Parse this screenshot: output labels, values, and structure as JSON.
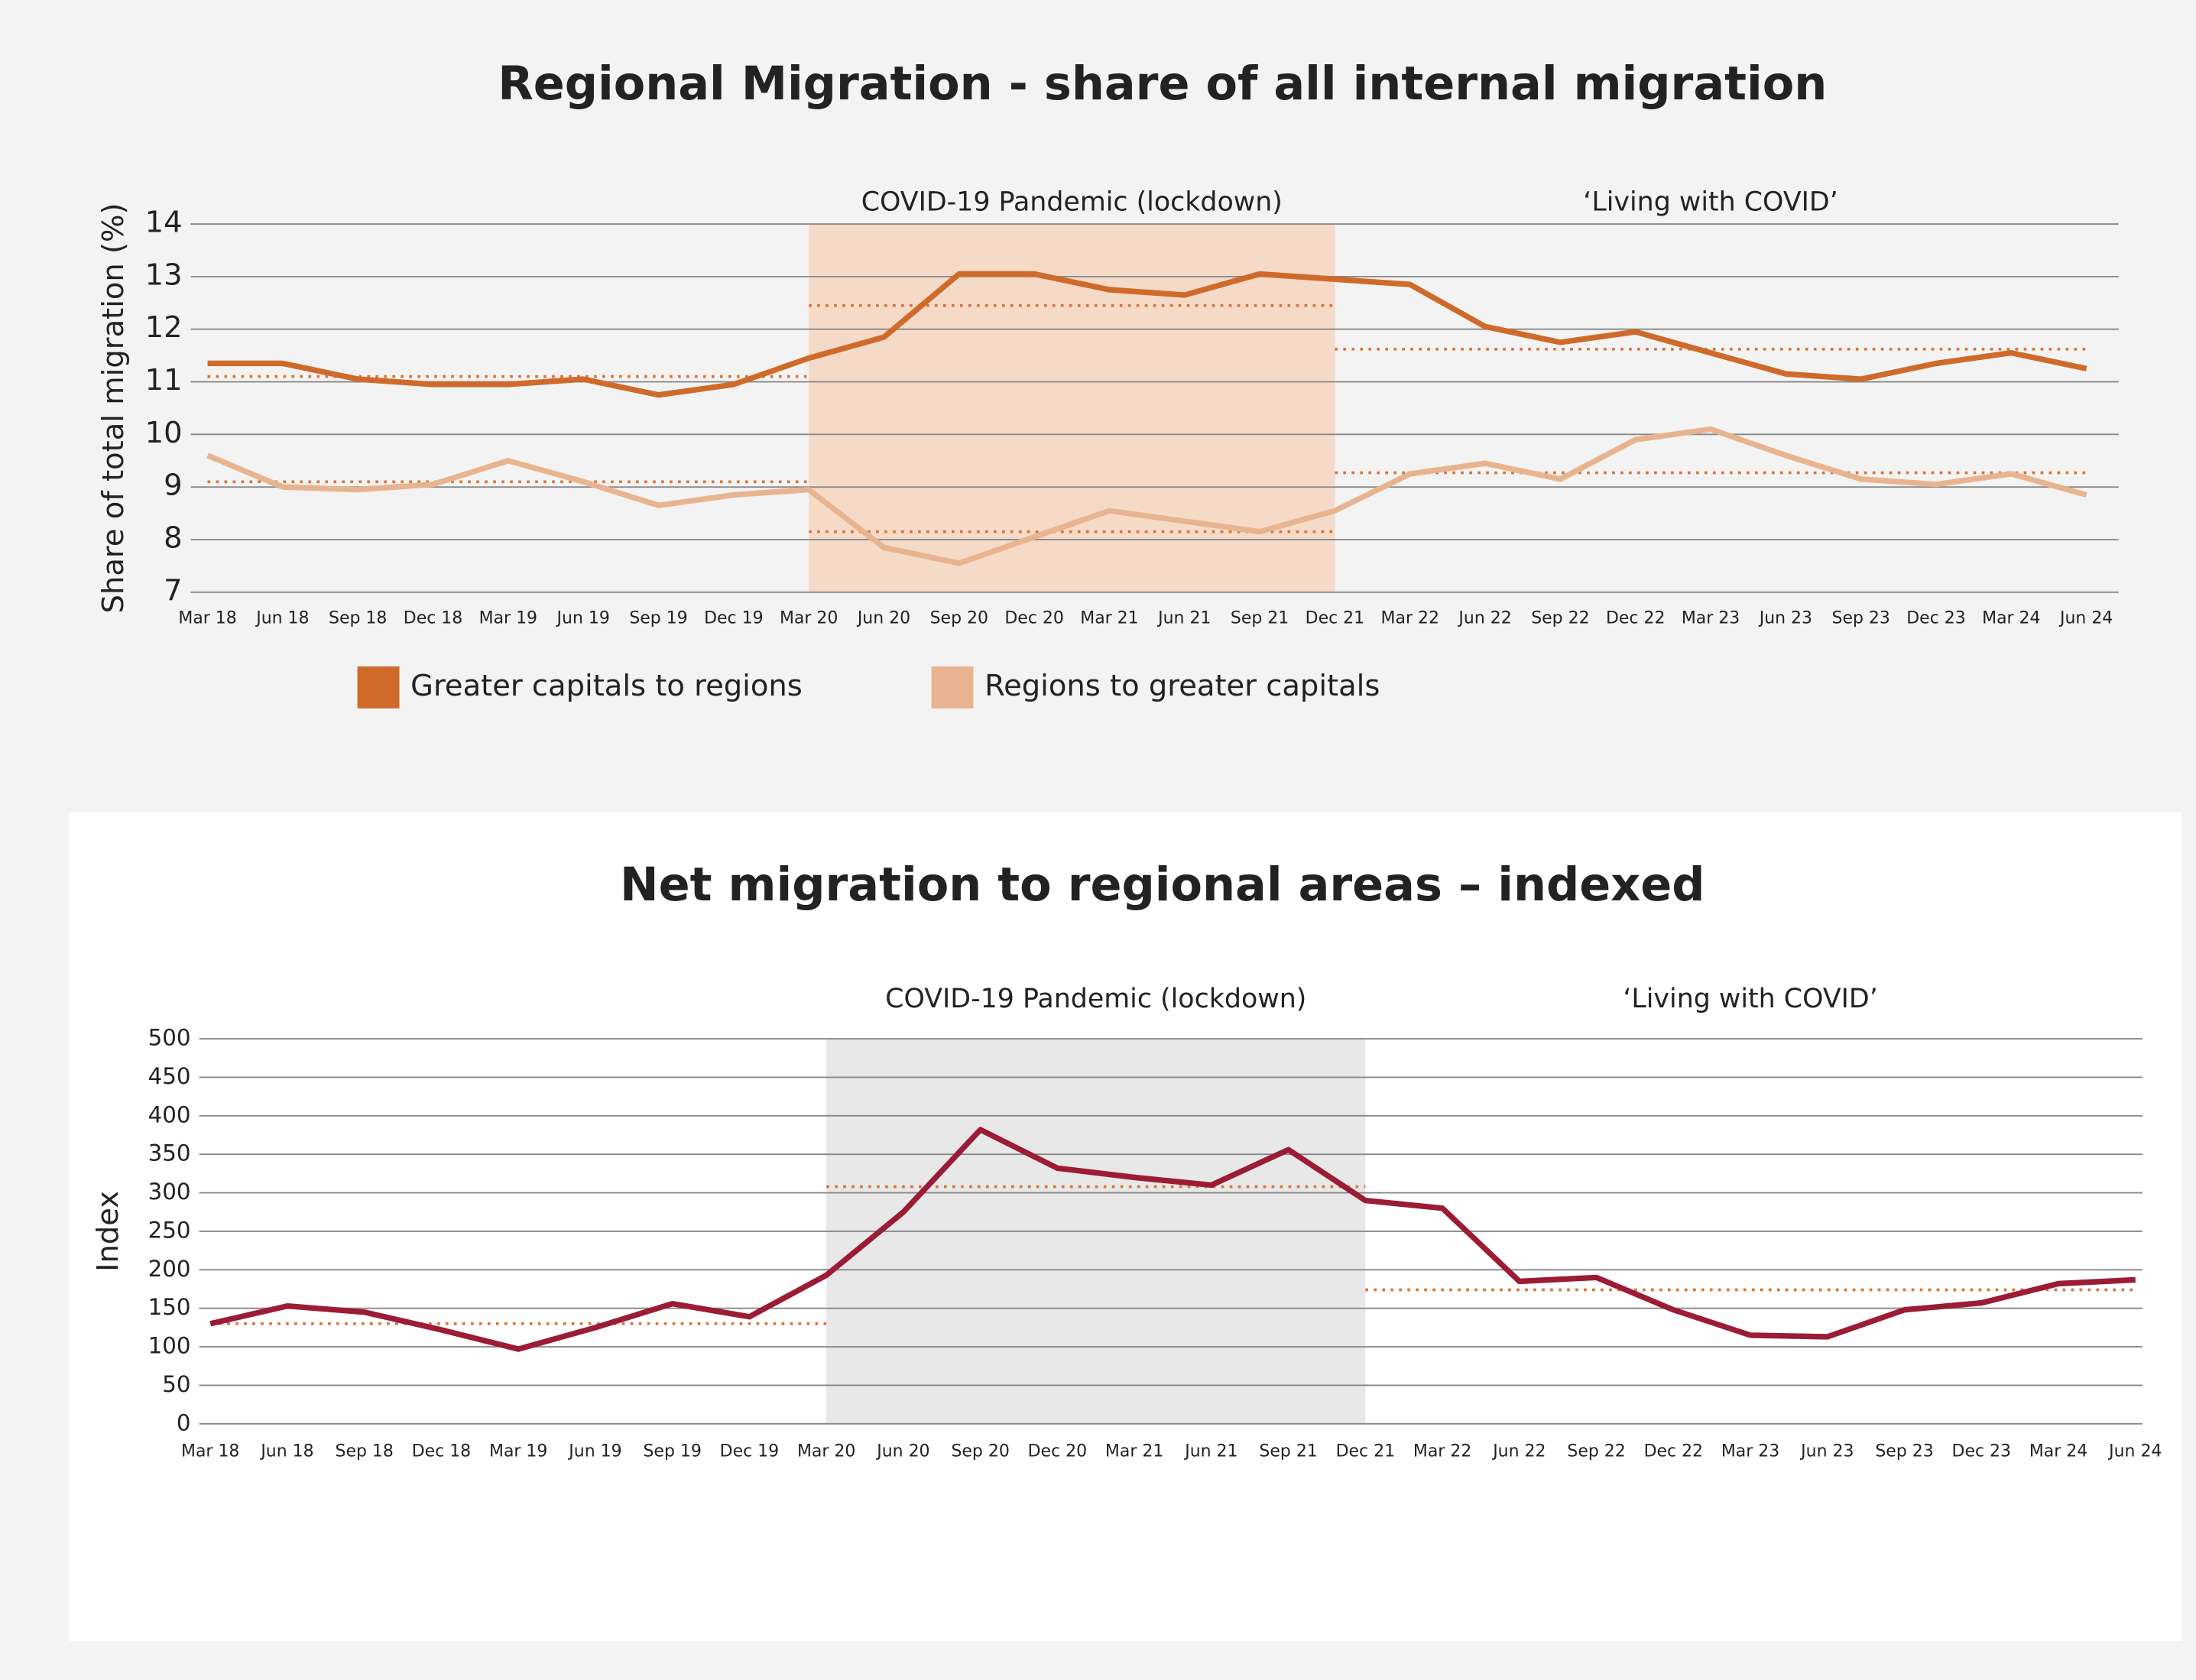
{
  "chart_data": [
    {
      "type": "line",
      "title": "Regional Migration - share of all internal migration",
      "y_label": "Share of total migration (%)",
      "categories": [
        "Mar 18",
        "Jun 18",
        "Sep 18",
        "Dec 18",
        "Mar 19",
        "Jun 19",
        "Sep 19",
        "Dec 19",
        "Mar 20",
        "Jun 20",
        "Sep 20",
        "Dec 20",
        "Mar 21",
        "Jun 21",
        "Sep 21",
        "Dec 21",
        "Mar 22",
        "Jun 22",
        "Sep 22",
        "Dec 22",
        "Mar 23",
        "Jun 23",
        "Sep 23",
        "Dec 23",
        "Mar 24",
        "Jun 24"
      ],
      "series": [
        {
          "name": "Greater capitals to regions",
          "color": "#cf6a2a",
          "values": [
            11.35,
            11.35,
            11.05,
            10.95,
            10.95,
            11.05,
            10.75,
            10.95,
            11.45,
            11.85,
            13.05,
            13.05,
            12.75,
            12.65,
            13.05,
            12.95,
            12.85,
            12.05,
            11.75,
            11.95,
            11.55,
            11.15,
            11.05,
            11.35,
            11.55,
            11.25
          ],
          "averages": [
            {
              "start": "Mar 18",
              "end": "Mar 20",
              "value": 11.1
            },
            {
              "start": "Mar 20",
              "end": "Dec 21",
              "value": 12.45
            },
            {
              "start": "Dec 21",
              "end": "Jun 24",
              "value": 11.62
            }
          ]
        },
        {
          "name": "Regions to greater capitals",
          "color": "#e8b48f",
          "values": [
            9.6,
            9.0,
            8.95,
            9.05,
            9.5,
            9.1,
            8.65,
            8.85,
            8.95,
            7.85,
            7.55,
            8.05,
            8.55,
            8.35,
            8.15,
            8.55,
            9.25,
            9.45,
            9.15,
            9.9,
            10.1,
            9.6,
            9.15,
            9.05,
            9.25,
            8.85
          ],
          "averages": [
            {
              "start": "Mar 18",
              "end": "Mar 20",
              "value": 9.1
            },
            {
              "start": "Mar 20",
              "end": "Dec 21",
              "value": 8.15
            },
            {
              "start": "Dec 21",
              "end": "Jun 24",
              "value": 9.27
            }
          ]
        }
      ],
      "average_color": "#d9743a",
      "annotations": [
        {
          "text": "COVID-19 Pandemic (lockdown)",
          "start": "Mar 20",
          "end": "Dec 21",
          "shade": "#f5dac8"
        },
        {
          "text": "‘Living with COVID’",
          "start": "Dec 21",
          "end": "Jun 24"
        }
      ],
      "ylim": [
        7,
        14
      ],
      "yticks": [
        7,
        8,
        9,
        10,
        11,
        12,
        13,
        14
      ],
      "grid": true
    },
    {
      "type": "line",
      "title": "Net migration to regional areas – indexed",
      "y_label": "Index",
      "categories": [
        "Mar 18",
        "Jun 18",
        "Sep 18",
        "Dec 18",
        "Mar 19",
        "Jun 19",
        "Sep 19",
        "Dec 19",
        "Mar 20",
        "Jun 20",
        "Sep 20",
        "Dec 20",
        "Mar 21",
        "Jun 21",
        "Sep 21",
        "Dec 21",
        "Mar 22",
        "Jun 22",
        "Sep 22",
        "Dec 22",
        "Mar 23",
        "Jun 23",
        "Sep 23",
        "Dec 23",
        "Mar 24",
        "Jun 24"
      ],
      "color": "#9b1c34",
      "values": [
        130,
        153,
        145,
        122,
        97,
        125,
        156,
        139,
        193,
        275,
        382,
        332,
        320,
        310,
        356,
        290,
        280,
        185,
        190,
        148,
        115,
        113,
        148,
        157,
        182,
        187
      ],
      "averages": [
        {
          "start": "Mar 18",
          "end": "Mar 20",
          "value": 130
        },
        {
          "start": "Mar 20",
          "end": "Dec 21",
          "value": 308
        },
        {
          "start": "Dec 21",
          "end": "Jun 24",
          "value": 174
        }
      ],
      "average_color": "#d9743a",
      "annotations": [
        {
          "text": "COVID-19 Pandemic (lockdown)",
          "start": "Mar 20",
          "end": "Dec 21",
          "shade": "#e8e8e8"
        },
        {
          "text": "‘Living with COVID’",
          "start": "Dec 21",
          "end": "Jun 24"
        }
      ],
      "ylim": [
        0,
        500
      ],
      "yticks": [
        0,
        50,
        100,
        150,
        200,
        250,
        300,
        350,
        400,
        450,
        500
      ],
      "grid": true
    }
  ]
}
